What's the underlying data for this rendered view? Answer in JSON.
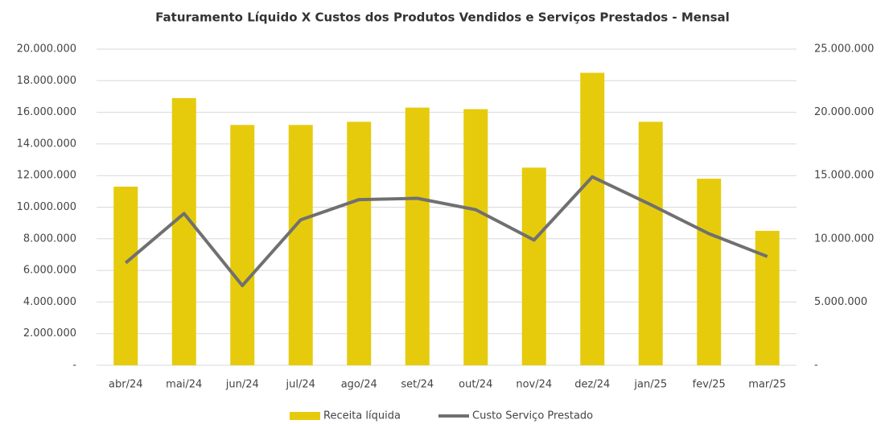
{
  "chart_data": {
    "type": "bar_line",
    "title": "Faturamento Líquido X Custos dos Produtos Vendidos e Serviços Prestados - Mensal",
    "categories": [
      "abr/24",
      "mai/24",
      "jun/24",
      "jul/24",
      "ago/24",
      "set/24",
      "out/24",
      "nov/24",
      "dez/24",
      "jan/25",
      "fev/25",
      "mar/25"
    ],
    "series": [
      {
        "name": "Receita líquida",
        "type": "bar",
        "color": "#e6cb0c",
        "values": [
          11300000,
          16900000,
          15200000,
          15200000,
          15400000,
          16300000,
          16200000,
          12500000,
          18500000,
          15400000,
          11800000,
          8500000
        ]
      },
      {
        "name": "Custo Serviço Prestado",
        "type": "line",
        "axis": "y2",
        "color": "#707070",
        "values": [
          8100000,
          12000000,
          6300000,
          11500000,
          13100000,
          13200000,
          12300000,
          9900000,
          14900000,
          12700000,
          10400000,
          8600000
        ]
      }
    ],
    "ylim": [
      0,
      20000000
    ],
    "yticks": [
      {
        "value": 0,
        "label": "-"
      },
      {
        "value": 2000000,
        "label": "2.000.000"
      },
      {
        "value": 4000000,
        "label": "4.000.000"
      },
      {
        "value": 6000000,
        "label": "6.000.000"
      },
      {
        "value": 8000000,
        "label": "8.000.000"
      },
      {
        "value": 10000000,
        "label": "10.000.000"
      },
      {
        "value": 12000000,
        "label": "12.000.000"
      },
      {
        "value": 14000000,
        "label": "14.000.000"
      },
      {
        "value": 16000000,
        "label": "16.000.000"
      },
      {
        "value": 18000000,
        "label": "18.000.000"
      },
      {
        "value": 20000000,
        "label": "20.000.000"
      }
    ],
    "y2lim": [
      0,
      25000000
    ],
    "y2ticks": [
      {
        "value": 0,
        "label": "-"
      },
      {
        "value": 5000000,
        "label": "5.000.000"
      },
      {
        "value": 10000000,
        "label": "10.000.000"
      },
      {
        "value": 15000000,
        "label": "15.000.000"
      },
      {
        "value": 20000000,
        "label": "20.000.000"
      },
      {
        "value": 25000000,
        "label": "25.000.000"
      }
    ],
    "grid": true,
    "legend": "bottom"
  }
}
